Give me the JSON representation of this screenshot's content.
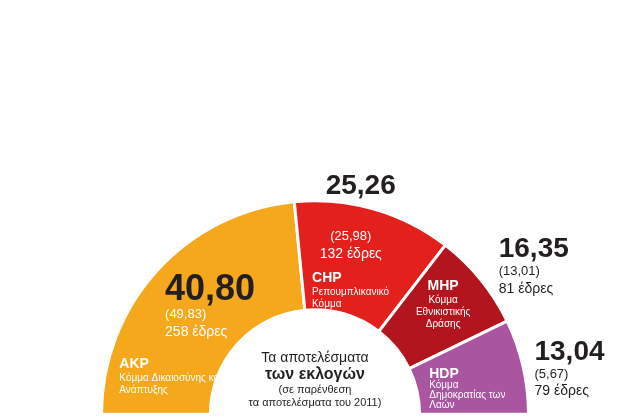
{
  "chart_data": {
    "type": "doughnut",
    "title": [
      "Τα αποτελέσματα",
      "των εκλογών"
    ],
    "subtitle": [
      "(σε παρένθεση",
      "τα αποτελέσματα του 2011)"
    ],
    "categories": [
      "AKP",
      "CHP",
      "MHP",
      "HDP"
    ],
    "names": [
      "Κόμμα Δικαιοσύνης και Ανάπτυξης",
      "Ρεπουμπλικανικό Κόμμα",
      "Κόμμα Εθνικιστικής Δράσης",
      "Κόμμα Δημοκρατίας των Λαών"
    ],
    "values": [
      258,
      132,
      81,
      79
    ],
    "value_labels": [
      "258 έδρες",
      "132 έδρες",
      "81 έδρες",
      "79 έδρες"
    ],
    "vote_share": [
      40.8,
      25.26,
      16.35,
      13.04
    ],
    "vote_share_labels": [
      "40,80",
      "25,26",
      "16,35",
      "13,04"
    ],
    "vote_share_2011": [
      49.83,
      25.98,
      13.01,
      5.67
    ],
    "vote_share_2011_labels": [
      "(49,83)",
      "(25,98)",
      "(13,01)",
      "(5,67)"
    ],
    "colors": [
      "#f6a81c",
      "#e3201b",
      "#b3151f",
      "#a9559f"
    ],
    "data_labels": true
  }
}
